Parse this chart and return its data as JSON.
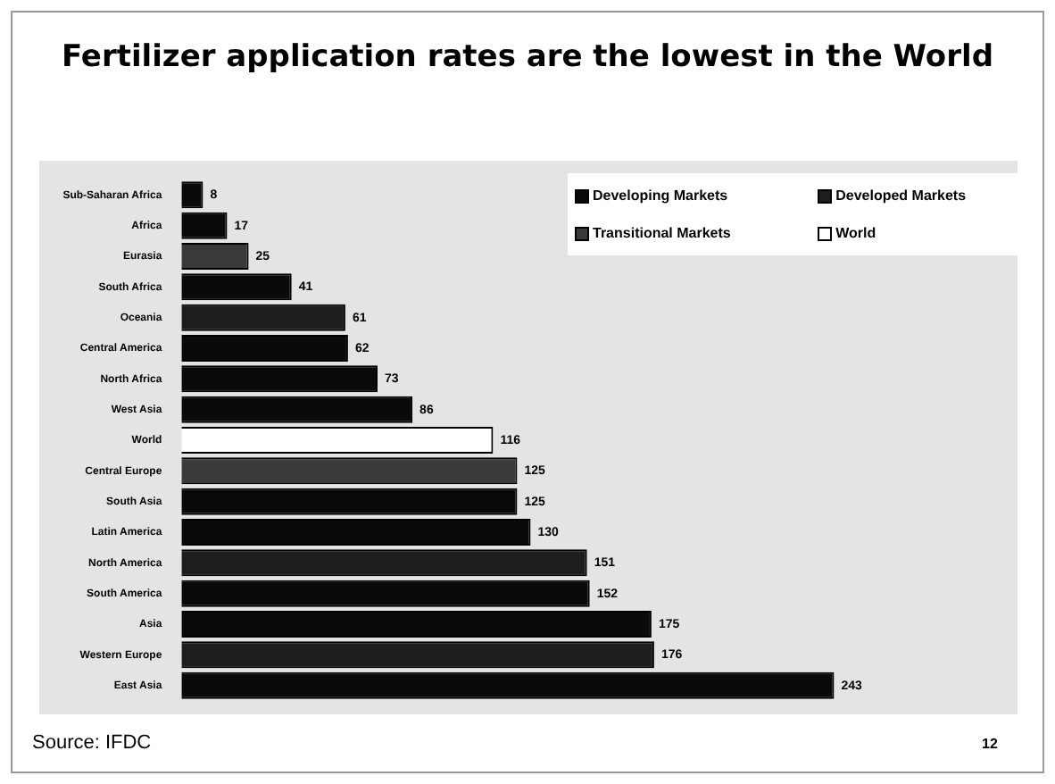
{
  "chart_data": {
    "type": "bar",
    "orientation": "horizontal",
    "stacked": true,
    "title": "Fertilizer application rates are the lowest in the World",
    "categories": [
      "Sub-Saharan Africa",
      "Africa",
      "Eurasia",
      "South Africa",
      "Oceania",
      "Central America",
      "North Africa",
      "West Asia",
      "World",
      "Central Europe",
      "South Asia",
      "Latin America",
      "North America",
      "South America",
      "Asia",
      "Western Europe",
      "East Asia"
    ],
    "series": [
      {
        "name": "Developing Markets",
        "color": "#0a0a0a",
        "values": [
          8,
          17,
          null,
          41,
          null,
          62,
          73,
          86,
          null,
          null,
          125,
          130,
          null,
          152,
          175,
          null,
          243
        ]
      },
      {
        "name": "Developed Markets",
        "color": "#1e1e1e",
        "values": [
          null,
          null,
          null,
          null,
          61,
          null,
          null,
          null,
          null,
          null,
          null,
          null,
          151,
          null,
          null,
          176,
          null
        ]
      },
      {
        "name": "Transitional Markets",
        "color": "#3a3a3a",
        "values": [
          null,
          null,
          25,
          null,
          null,
          null,
          null,
          null,
          null,
          125,
          null,
          null,
          null,
          null,
          null,
          null,
          null
        ]
      },
      {
        "name": "World",
        "color": "#ffffff",
        "values": [
          null,
          null,
          null,
          null,
          null,
          null,
          null,
          null,
          116,
          null,
          null,
          null,
          null,
          null,
          null,
          null,
          null
        ]
      }
    ],
    "tick_labels": "y",
    "data_labels": true,
    "legend": "top right",
    "annotations": [
      "Source: IFDC",
      "12"
    ]
  }
}
